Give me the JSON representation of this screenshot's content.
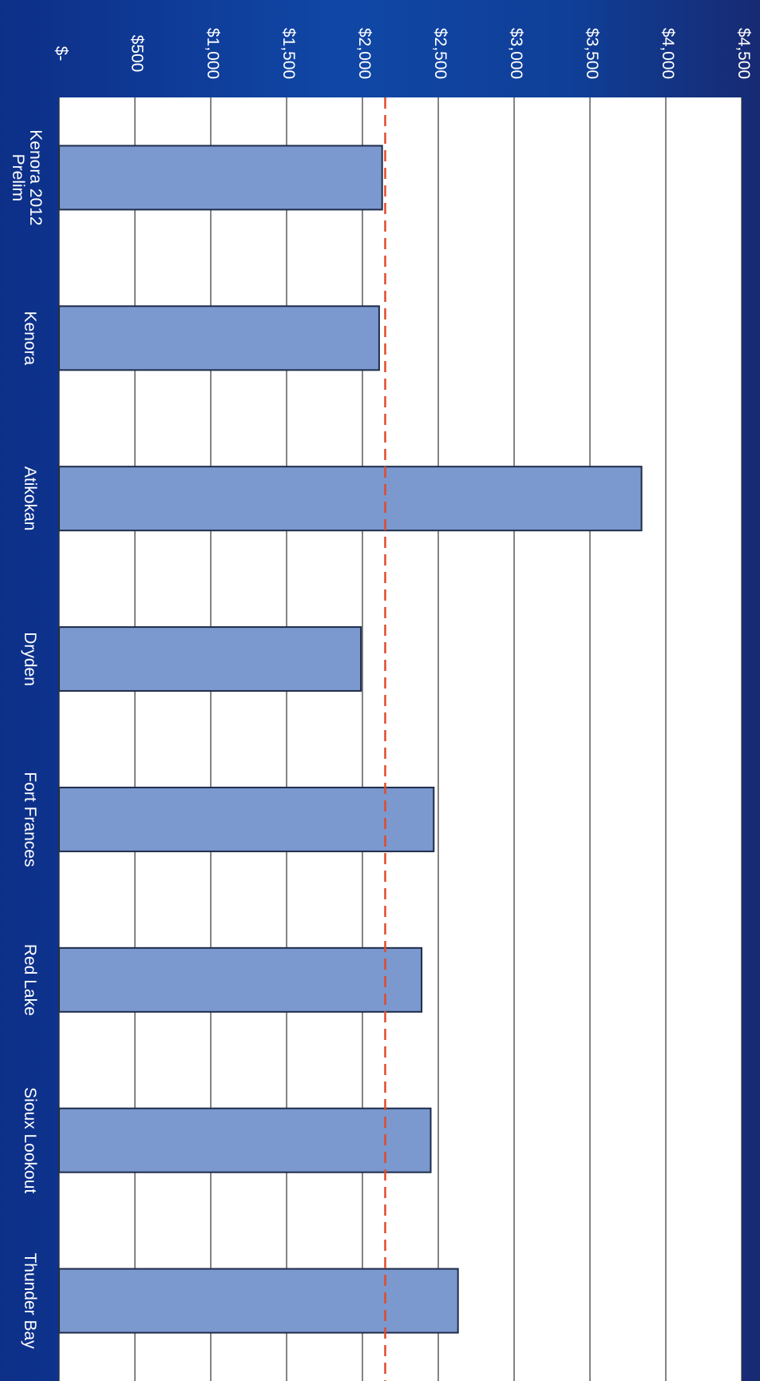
{
  "chart_data": {
    "type": "bar",
    "orientation": "rotated",
    "categories": [
      "Kenora 2012 Prelim",
      "Kenora",
      "Atikokan",
      "Dryden",
      "Fort Frances",
      "Red Lake",
      "Sioux Lookout",
      "Thunder Bay"
    ],
    "values": [
      2130,
      2110,
      3840,
      1990,
      2470,
      2390,
      2450,
      2630
    ],
    "reference_line": {
      "value": 2150,
      "color": "#e14a2a",
      "style": "dashed"
    },
    "y_ticks": [
      "$-",
      "$500",
      "$1,000",
      "$1,500",
      "$2,000",
      "$2,500",
      "$3,000",
      "$3,500",
      "$4,000",
      "$4,500"
    ],
    "ylim": [
      0,
      4500
    ],
    "grid": true,
    "bar_color": "#7b98cf",
    "bar_border": "#1e2c4a",
    "plot_background": "#ffffff"
  }
}
